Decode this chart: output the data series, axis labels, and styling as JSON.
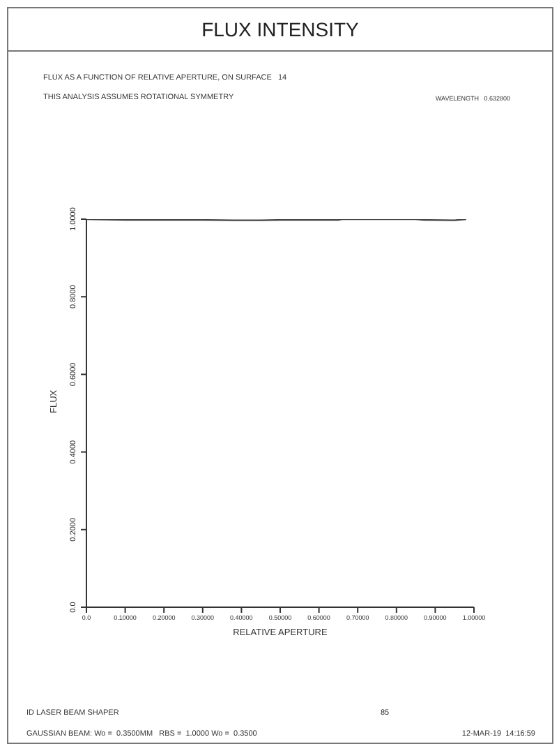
{
  "chart_data": {
    "type": "line",
    "title": "FLUX INTENSITY",
    "xlabel": "RELATIVE APERTURE",
    "ylabel": "FLUX",
    "annotations": [
      "FLUX AS A FUNCTION OF RELATIVE APERTURE, ON SURFACE   14",
      "THIS ANALYSIS ASSUMES ROTATIONAL SYMMETRY",
      "WAVELENGTH   0.632800",
      "ID LASER BEAM SHAPER",
      "85",
      "GAUSSIAN BEAM: Wo =  0.3500MM   RBS =  1.0000 Wo =  0.3500",
      "12-MAR-19  14:16:59"
    ],
    "x": [
      0,
      0.1,
      0.2,
      0.3,
      0.38,
      0.45,
      0.5,
      0.65,
      0.66,
      0.85,
      0.87,
      0.95,
      0.98
    ],
    "series": [
      {
        "color": "#444444",
        "values": [
          1.0,
          0.998,
          0.998,
          0.998,
          0.997,
          0.997,
          0.998,
          0.998,
          1.0,
          1.0,
          0.998,
          0.997,
          1.0
        ]
      }
    ],
    "xlim": [
      0,
      1
    ],
    "ylim": [
      0,
      1
    ],
    "xticks": [
      {
        "value": 0,
        "label": "0.0"
      },
      {
        "value": 0.1,
        "label": "0.10000"
      },
      {
        "value": 0.2,
        "label": "0.20000"
      },
      {
        "value": 0.3,
        "label": "0.30000"
      },
      {
        "value": 0.4,
        "label": "0.40000"
      },
      {
        "value": 0.5,
        "label": "0.50000"
      },
      {
        "value": 0.6,
        "label": "0.60000"
      },
      {
        "value": 0.7,
        "label": "0.70000"
      },
      {
        "value": 0.8,
        "label": "0.80000"
      },
      {
        "value": 0.9,
        "label": "0.90000"
      },
      {
        "value": 1,
        "label": "1.00000"
      }
    ],
    "yticks": [
      {
        "value": 0,
        "label": "0.0"
      },
      {
        "value": 0.2,
        "label": "0.2000"
      },
      {
        "value": 0.4,
        "label": "0.4000"
      },
      {
        "value": 0.6,
        "label": "0.6000"
      },
      {
        "value": 0.8,
        "label": "0.8000"
      },
      {
        "value": 1,
        "label": "1.0000"
      }
    ],
    "grid": false,
    "legend": false,
    "marker": "none",
    "line_style": "solid"
  }
}
